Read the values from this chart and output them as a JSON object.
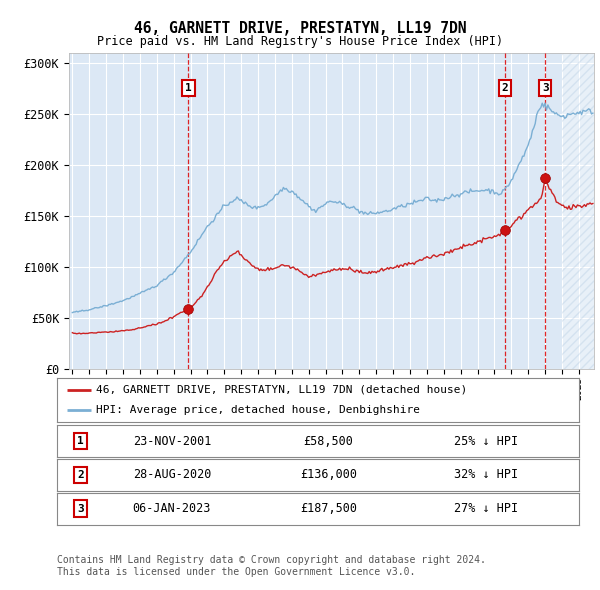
{
  "title": "46, GARNETT DRIVE, PRESTATYN, LL19 7DN",
  "subtitle": "Price paid vs. HM Land Registry's House Price Index (HPI)",
  "ylim": [
    0,
    310000
  ],
  "yticks": [
    0,
    50000,
    100000,
    150000,
    200000,
    250000,
    300000
  ],
  "ytick_labels": [
    "£0",
    "£50K",
    "£100K",
    "£150K",
    "£200K",
    "£250K",
    "£300K"
  ],
  "sale_prices": [
    58500,
    136000,
    187500
  ],
  "sale_labels": [
    "1",
    "2",
    "3"
  ],
  "sale_info": [
    {
      "label": "1",
      "date": "23-NOV-2001",
      "price": "£58,500",
      "pct": "25% ↓ HPI"
    },
    {
      "label": "2",
      "date": "28-AUG-2020",
      "price": "£136,000",
      "pct": "32% ↓ HPI"
    },
    {
      "label": "3",
      "date": "06-JAN-2023",
      "price": "£187,500",
      "pct": "27% ↓ HPI"
    }
  ],
  "line_red": "#cc2222",
  "line_blue": "#7bafd4",
  "plot_bg": "#dce8f5",
  "grid_color": "#ffffff",
  "legend_label_red": "46, GARNETT DRIVE, PRESTATYN, LL19 7DN (detached house)",
  "legend_label_blue": "HPI: Average price, detached house, Denbighshire",
  "footer": "Contains HM Land Registry data © Crown copyright and database right 2024.\nThis data is licensed under the Open Government Licence v3.0."
}
